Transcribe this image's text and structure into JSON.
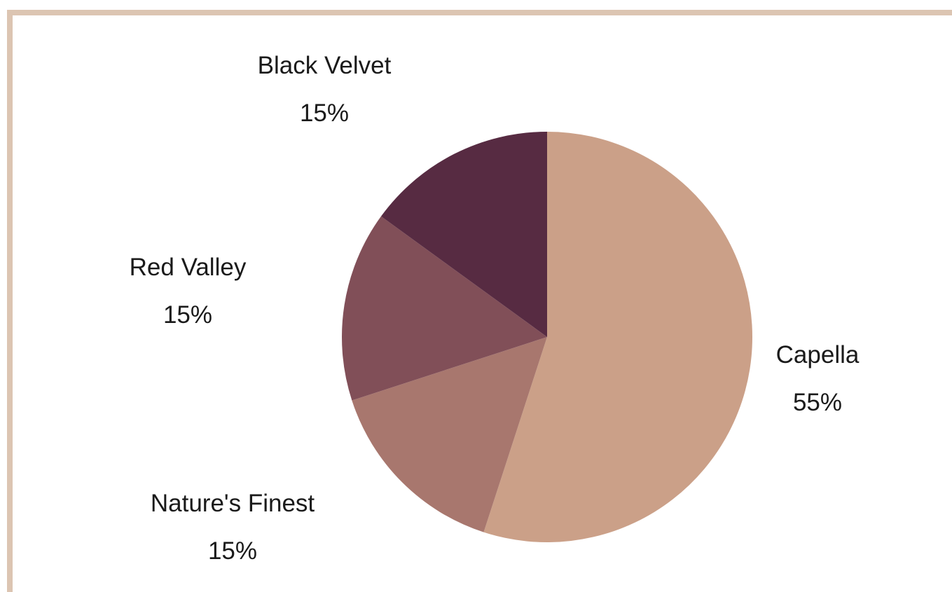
{
  "chart_data": {
    "type": "pie",
    "slices": [
      {
        "label": "Capella",
        "value": 55,
        "value_label": "55%",
        "color": "#cba088"
      },
      {
        "label": "Nature's Finest",
        "value": 15,
        "value_label": "15%",
        "color": "#a8776e"
      },
      {
        "label": "Red Valley",
        "value": 15,
        "value_label": "15%",
        "color": "#814f58"
      },
      {
        "label": "Black Velvet",
        "value": 15,
        "value_label": "15%",
        "color": "#572b42"
      }
    ],
    "start_angle": "12 o'clock",
    "direction": "clockwise",
    "legend": "none"
  }
}
